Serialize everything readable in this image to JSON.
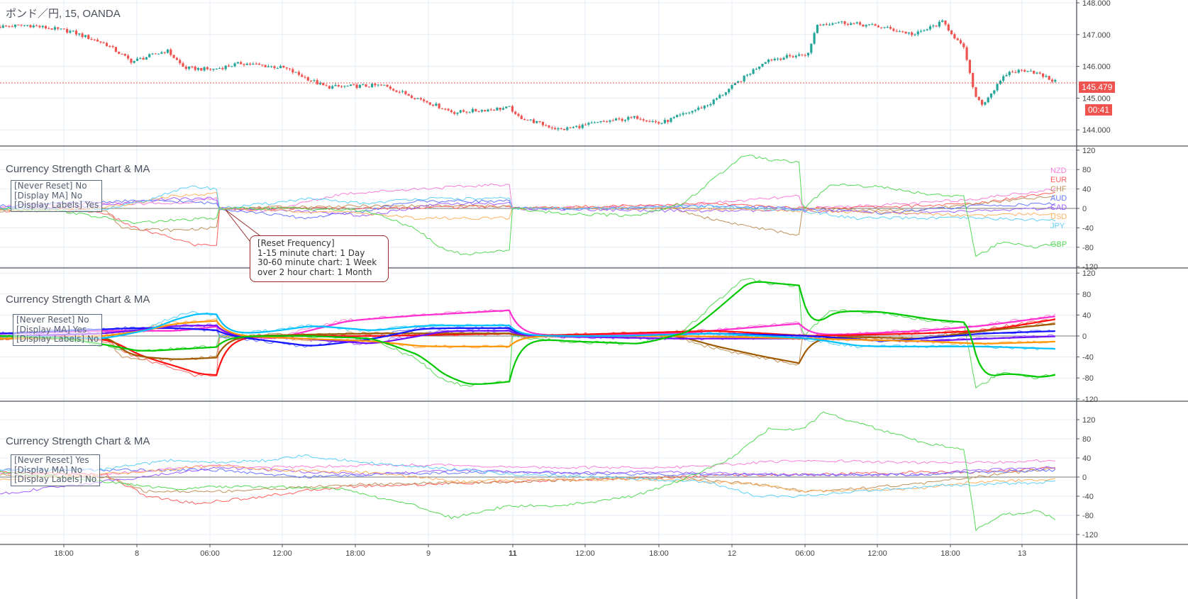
{
  "header": {
    "symbol_title": "ポンド／円, 15, OANDA"
  },
  "price_pane": {
    "axis_ticks": [
      "148.000",
      "147.000",
      "146.000",
      "145.000",
      "144.000"
    ],
    "last_price": "145.479",
    "countdown": "00:41",
    "colors": {
      "up": "#26a69a",
      "down": "#ef5350"
    },
    "path": [
      [
        0,
        147.25
      ],
      [
        2.3,
        147.3
      ],
      [
        5.8,
        147.1
      ],
      [
        8.7,
        146.7
      ],
      [
        10.8,
        146.15
      ],
      [
        13.7,
        146.5
      ],
      [
        15.1,
        145.95
      ],
      [
        17.4,
        145.9
      ],
      [
        19.8,
        146.1
      ],
      [
        23.3,
        145.95
      ],
      [
        26.7,
        145.35
      ],
      [
        31.4,
        145.4
      ],
      [
        34.9,
        144.9
      ],
      [
        37.2,
        144.55
      ],
      [
        41.9,
        144.7
      ],
      [
        42.2,
        144.45
      ],
      [
        45.9,
        144.0
      ],
      [
        49.4,
        144.25
      ],
      [
        52.3,
        144.4
      ],
      [
        54.1,
        144.2
      ],
      [
        58.1,
        144.8
      ],
      [
        60.5,
        145.5
      ],
      [
        62.8,
        146.2
      ],
      [
        66.3,
        146.4
      ],
      [
        66.9,
        147.3
      ],
      [
        68.6,
        147.4
      ],
      [
        72.1,
        147.25
      ],
      [
        75,
        147.0
      ],
      [
        77.3,
        147.4
      ],
      [
        79.1,
        146.5
      ],
      [
        79.8,
        145.2
      ],
      [
        80.5,
        144.8
      ],
      [
        82.6,
        145.8
      ],
      [
        84.3,
        145.9
      ],
      [
        86.6,
        145.5
      ]
    ]
  },
  "indicator_title": "Currency Strength Chart & MA",
  "panes": [
    {
      "settings": [
        "[Never Reset] No",
        "[Display MA] No",
        "[Display Labels] Yes"
      ]
    },
    {
      "settings": [
        "[Never Reset] No",
        "[Display MA] Yes",
        "[Display Labels] No"
      ]
    },
    {
      "settings": [
        "[Never Reset] Yes",
        "[Display MA] No",
        "[Display Labels] No"
      ]
    }
  ],
  "callout": {
    "lines": [
      "[Reset Frequency]",
      "1-15 minute chart: 1 Day",
      "30-60 minute chart: 1 Week",
      "over 2 hour chart: 1 Month"
    ]
  },
  "strength_axis_ticks": [
    "120",
    "80",
    "40",
    "0",
    "-40",
    "-80",
    "-120"
  ],
  "time_axis": [
    "18:00",
    "8",
    "06:00",
    "12:00",
    "18:00",
    "9",
    "11",
    "12:00",
    "18:00",
    "12",
    "06:00",
    "12:00",
    "18:00",
    "13"
  ],
  "chart_data": {
    "type": "line",
    "x_unit": "hours from chart start",
    "currencies": [
      {
        "name": "NZD",
        "color": "#f77fd8",
        "ma_color": "#ff2fd0",
        "reset": [
          [
            0,
            5
          ],
          [
            8,
            10
          ],
          [
            14,
            10
          ],
          [
            17.8,
            20
          ],
          [
            18,
            0
          ],
          [
            22,
            -5
          ],
          [
            28,
            30
          ],
          [
            34,
            40
          ],
          [
            38,
            45
          ],
          [
            41.8,
            50
          ],
          [
            42,
            0
          ],
          [
            55,
            5
          ],
          [
            65.5,
            25
          ],
          [
            65.8,
            0
          ],
          [
            75,
            10
          ],
          [
            80,
            20
          ],
          [
            86.6,
            40
          ]
        ],
        "never_reset": [
          [
            0,
            10
          ],
          [
            8,
            5
          ],
          [
            17.8,
            25
          ],
          [
            22,
            20
          ],
          [
            30,
            25
          ],
          [
            38,
            25
          ],
          [
            42,
            20
          ],
          [
            55,
            20
          ],
          [
            65.8,
            35
          ],
          [
            75,
            30
          ],
          [
            80,
            30
          ],
          [
            86.6,
            35
          ]
        ]
      },
      {
        "name": "EUR",
        "color": "#ff6060",
        "ma_color": "#ff1010",
        "reset": [
          [
            0,
            -5
          ],
          [
            5,
            0
          ],
          [
            8.7,
            -10
          ],
          [
            11,
            -40
          ],
          [
            14,
            -60
          ],
          [
            16,
            -75
          ],
          [
            17.8,
            -75
          ],
          [
            18,
            0
          ],
          [
            30,
            0
          ],
          [
            41.8,
            5
          ],
          [
            42,
            0
          ],
          [
            50,
            5
          ],
          [
            58,
            10
          ],
          [
            65.8,
            0
          ],
          [
            75,
            5
          ],
          [
            80,
            10
          ],
          [
            86.6,
            35
          ]
        ],
        "never_reset": [
          [
            0,
            10
          ],
          [
            8.7,
            5
          ],
          [
            12,
            -40
          ],
          [
            16,
            -55
          ],
          [
            20,
            -45
          ],
          [
            28,
            -20
          ],
          [
            42,
            -10
          ],
          [
            55,
            0
          ],
          [
            60,
            5
          ],
          [
            66,
            5
          ],
          [
            75,
            10
          ],
          [
            80,
            10
          ],
          [
            86.6,
            20
          ]
        ]
      },
      {
        "name": "CHF",
        "color": "#c0925a",
        "ma_color": "#a05a00",
        "reset": [
          [
            0,
            -5
          ],
          [
            8.7,
            -5
          ],
          [
            10,
            -40
          ],
          [
            14,
            -45
          ],
          [
            17.8,
            -40
          ],
          [
            18,
            0
          ],
          [
            30,
            5
          ],
          [
            41.8,
            5
          ],
          [
            42,
            0
          ],
          [
            55,
            0
          ],
          [
            58,
            -20
          ],
          [
            62,
            -40
          ],
          [
            65.5,
            -55
          ],
          [
            65.8,
            0
          ],
          [
            75,
            -5
          ],
          [
            80,
            10
          ],
          [
            86.6,
            25
          ]
        ],
        "never_reset": [
          [
            0,
            5
          ],
          [
            8.7,
            0
          ],
          [
            12,
            -30
          ],
          [
            17.8,
            -30
          ],
          [
            22,
            -25
          ],
          [
            30,
            -15
          ],
          [
            42,
            -10
          ],
          [
            55,
            0
          ],
          [
            62,
            -15
          ],
          [
            66,
            -30
          ],
          [
            75,
            -15
          ],
          [
            80,
            0
          ],
          [
            86.6,
            20
          ]
        ]
      },
      {
        "name": "AUD",
        "color": "#6677ff",
        "ma_color": "#1515ff",
        "reset": [
          [
            0,
            5
          ],
          [
            10,
            15
          ],
          [
            14,
            15
          ],
          [
            17.8,
            10
          ],
          [
            18,
            0
          ],
          [
            25,
            -20
          ],
          [
            30,
            -5
          ],
          [
            34,
            15
          ],
          [
            41.8,
            15
          ],
          [
            42,
            0
          ],
          [
            50,
            0
          ],
          [
            58,
            5
          ],
          [
            65.8,
            0
          ],
          [
            72,
            -10
          ],
          [
            80,
            5
          ],
          [
            86.6,
            10
          ]
        ],
        "never_reset": [
          [
            0,
            15
          ],
          [
            10,
            15
          ],
          [
            17.8,
            15
          ],
          [
            25,
            0
          ],
          [
            30,
            5
          ],
          [
            38,
            10
          ],
          [
            42,
            10
          ],
          [
            55,
            5
          ],
          [
            65.8,
            5
          ],
          [
            75,
            5
          ],
          [
            80,
            10
          ],
          [
            86.6,
            15
          ]
        ]
      },
      {
        "name": "CAD",
        "color": "#a060ff",
        "ma_color": "#7010ff",
        "reset": [
          [
            0,
            0
          ],
          [
            8,
            5
          ],
          [
            12,
            15
          ],
          [
            14,
            20
          ],
          [
            17.8,
            20
          ],
          [
            18,
            0
          ],
          [
            24,
            -5
          ],
          [
            30,
            -15
          ],
          [
            36,
            10
          ],
          [
            41.8,
            10
          ],
          [
            42,
            0
          ],
          [
            55,
            -5
          ],
          [
            65.8,
            -5
          ],
          [
            75,
            -10
          ],
          [
            80,
            -5
          ],
          [
            86.6,
            0
          ]
        ],
        "never_reset": [
          [
            0,
            -35
          ],
          [
            5,
            -20
          ],
          [
            10,
            -5
          ],
          [
            17.8,
            20
          ],
          [
            22,
            15
          ],
          [
            30,
            5
          ],
          [
            38,
            15
          ],
          [
            42,
            10
          ],
          [
            55,
            10
          ],
          [
            65.8,
            5
          ],
          [
            75,
            5
          ],
          [
            80,
            15
          ],
          [
            86.6,
            20
          ]
        ]
      },
      {
        "name": "USD",
        "color": "#ffb060",
        "ma_color": "#ff9500",
        "reset": [
          [
            0,
            -5
          ],
          [
            8,
            0
          ],
          [
            11,
            10
          ],
          [
            14,
            25
          ],
          [
            17.8,
            30
          ],
          [
            18,
            0
          ],
          [
            24,
            -5
          ],
          [
            30,
            -10
          ],
          [
            34,
            -20
          ],
          [
            38,
            -20
          ],
          [
            41.8,
            -20
          ],
          [
            42,
            0
          ],
          [
            55,
            0
          ],
          [
            65.8,
            -5
          ],
          [
            75,
            -10
          ],
          [
            80,
            -15
          ],
          [
            86.6,
            -10
          ]
        ],
        "never_reset": [
          [
            0,
            -5
          ],
          [
            8,
            5
          ],
          [
            14,
            15
          ],
          [
            17.8,
            25
          ],
          [
            22,
            15
          ],
          [
            30,
            10
          ],
          [
            38,
            -10
          ],
          [
            42,
            -5
          ],
          [
            55,
            -5
          ],
          [
            62,
            -15
          ],
          [
            65.8,
            -30
          ],
          [
            75,
            -25
          ],
          [
            80,
            -10
          ],
          [
            86.6,
            -5
          ]
        ]
      },
      {
        "name": "JPY",
        "color": "#5fd0f8",
        "ma_color": "#00c0ff",
        "reset": [
          [
            0,
            0
          ],
          [
            8,
            -5
          ],
          [
            12,
            15
          ],
          [
            14,
            35
          ],
          [
            16,
            45
          ],
          [
            17.8,
            40
          ],
          [
            18,
            0
          ],
          [
            22,
            10
          ],
          [
            25,
            20
          ],
          [
            30,
            10
          ],
          [
            34,
            20
          ],
          [
            41.8,
            20
          ],
          [
            42,
            0
          ],
          [
            50,
            0
          ],
          [
            58,
            5
          ],
          [
            65.8,
            -5
          ],
          [
            70,
            -20
          ],
          [
            80,
            -20
          ],
          [
            86.6,
            -25
          ]
        ],
        "never_reset": [
          [
            0,
            15
          ],
          [
            8,
            15
          ],
          [
            14,
            35
          ],
          [
            17.8,
            30
          ],
          [
            22,
            35
          ],
          [
            25,
            45
          ],
          [
            30,
            30
          ],
          [
            38,
            15
          ],
          [
            42,
            5
          ],
          [
            50,
            0
          ],
          [
            58,
            -10
          ],
          [
            62,
            -40
          ],
          [
            65.8,
            -40
          ],
          [
            75,
            -20
          ],
          [
            80,
            -15
          ],
          [
            86.6,
            -10
          ]
        ]
      },
      {
        "name": "GBP",
        "color": "#55d855",
        "ma_color": "#00c800",
        "reset": [
          [
            0,
            0
          ],
          [
            5,
            -5
          ],
          [
            8.7,
            -20
          ],
          [
            11,
            -30
          ],
          [
            14,
            -25
          ],
          [
            17.8,
            -20
          ],
          [
            18,
            0
          ],
          [
            25,
            0
          ],
          [
            30,
            -5
          ],
          [
            34,
            -40
          ],
          [
            36,
            -80
          ],
          [
            38,
            -95
          ],
          [
            41.8,
            -85
          ],
          [
            42,
            0
          ],
          [
            46,
            -10
          ],
          [
            52,
            -15
          ],
          [
            56,
            10
          ],
          [
            58,
            50
          ],
          [
            61,
            110
          ],
          [
            63,
            100
          ],
          [
            65.5,
            95
          ],
          [
            65.8,
            -5
          ],
          [
            68,
            50
          ],
          [
            72,
            45
          ],
          [
            76,
            30
          ],
          [
            79,
            25
          ],
          [
            80,
            -100
          ],
          [
            82,
            -70
          ],
          [
            85,
            -80
          ],
          [
            86.6,
            -70
          ]
        ],
        "never_reset": [
          [
            0,
            10
          ],
          [
            5,
            0
          ],
          [
            8.7,
            -10
          ],
          [
            14,
            -25
          ],
          [
            17.8,
            -20
          ],
          [
            22,
            -20
          ],
          [
            28,
            -25
          ],
          [
            34,
            -60
          ],
          [
            37,
            -85
          ],
          [
            41.8,
            -60
          ],
          [
            46,
            -60
          ],
          [
            52,
            -40
          ],
          [
            56,
            -5
          ],
          [
            60,
            40
          ],
          [
            63,
            100
          ],
          [
            65.8,
            100
          ],
          [
            67.5,
            135
          ],
          [
            72,
            100
          ],
          [
            76,
            70
          ],
          [
            79,
            60
          ],
          [
            80,
            -110
          ],
          [
            82,
            -80
          ],
          [
            85,
            -70
          ],
          [
            86.6,
            -90
          ]
        ]
      }
    ],
    "ylim": [
      -120,
      120
    ]
  }
}
